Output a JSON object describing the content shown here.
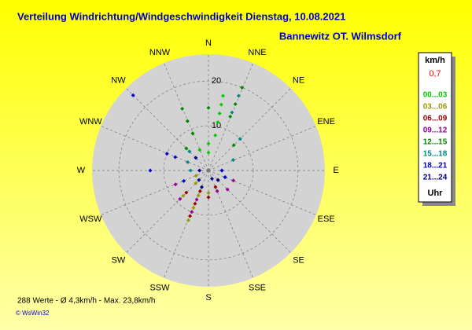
{
  "chart_data": {
    "type": "polar_scatter",
    "title": "Verteilung Windrichtung/Windgeschwindigkeit  Dienstag, 10.08.2021",
    "subtitle": "Bannewitz OT. Wilmsdorf",
    "directions": [
      "N",
      "NNE",
      "NE",
      "ENE",
      "E",
      "ESE",
      "SE",
      "SSE",
      "S",
      "SSW",
      "SW",
      "WSW",
      "W",
      "WNW",
      "NW",
      "NNW"
    ],
    "rlim": [
      0,
      26
    ],
    "rticks": [
      10,
      20
    ],
    "legend_title": "km/h",
    "current": "0,7",
    "legend_footer": "Uhr",
    "footer": "288 Werte   -   Ø 4,3km/h   -   Max. 23,8km/h",
    "copyright": "© WsWin32",
    "series": [
      {
        "name": "00...03",
        "color": "#00cc00",
        "x": [
          11,
          11,
          11,
          11,
          11,
          0,
          0,
          337,
          337,
          315
        ],
        "values": [
          17,
          15,
          13,
          11,
          8,
          6,
          4,
          9,
          5,
          7
        ]
      },
      {
        "name": "03...06",
        "color": "#999900",
        "x": [
          202,
          202,
          202,
          225,
          225,
          180,
          247,
          157
        ],
        "values": [
          12,
          9,
          6,
          4,
          8,
          5,
          3,
          4
        ]
      },
      {
        "name": "06...09",
        "color": "#990000",
        "x": [
          202,
          202,
          202,
          180,
          157,
          135,
          225
        ],
        "values": [
          11,
          8,
          5,
          6,
          4,
          3,
          7
        ]
      },
      {
        "name": "09...12",
        "color": "#990099",
        "x": [
          202,
          202,
          225,
          112,
          135,
          157,
          247,
          112
        ],
        "values": [
          10,
          7,
          9,
          4,
          6,
          5,
          8,
          6
        ]
      },
      {
        "name": "12...15",
        "color": "#008800",
        "x": [
          337,
          337,
          337,
          315,
          22,
          22,
          22,
          45,
          0
        ],
        "values": [
          15,
          12,
          9,
          7,
          20,
          16,
          13,
          8,
          14
        ]
      },
      {
        "name": "15...18",
        "color": "#008888",
        "x": [
          22,
          22,
          45,
          67,
          315,
          292,
          270,
          90
        ],
        "values": [
          18,
          14,
          10,
          6,
          6,
          5,
          4,
          3
        ]
      },
      {
        "name": "18...21",
        "color": "#0000cc",
        "x": [
          315,
          292,
          270,
          292,
          247,
          112,
          90
        ],
        "values": [
          23.8,
          10,
          13,
          8,
          6,
          4,
          3
        ]
      },
      {
        "name": "21...24",
        "color": "#000088",
        "x": [
          225,
          202,
          270,
          135,
          157,
          315
        ],
        "values": [
          3,
          4,
          2,
          3,
          2,
          4
        ]
      }
    ]
  }
}
